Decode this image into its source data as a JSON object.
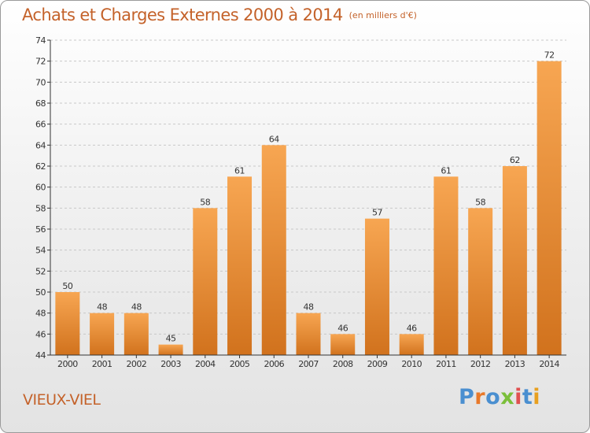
{
  "chart_title": "Achats et Charges Externes 2000 à 2014",
  "chart_subtitle": "(en milliers d'€)",
  "commune_name": "VIEUX-VIEL",
  "logo": {
    "text": "Proxiti",
    "colors": [
      "#4a8fd0",
      "#e8792a",
      "#4a8fd0",
      "#7bbf3a",
      "#e05050",
      "#4a8fd0",
      "#e8a020"
    ]
  },
  "colors": {
    "accent": "#c4622a",
    "bar_top": "#f7a652",
    "bar_bottom": "#d1721d",
    "axis": "#333333"
  },
  "chart_data": {
    "type": "bar",
    "categories": [
      "2000",
      "2001",
      "2002",
      "2003",
      "2004",
      "2005",
      "2006",
      "2007",
      "2008",
      "2009",
      "2010",
      "2011",
      "2012",
      "2013",
      "2014"
    ],
    "values": [
      50,
      48,
      48,
      45,
      58,
      61,
      64,
      48,
      46,
      57,
      46,
      61,
      58,
      62,
      72
    ],
    "ylim": [
      44,
      74
    ],
    "yticks": [
      44,
      46,
      48,
      50,
      52,
      54,
      56,
      58,
      60,
      62,
      64,
      66,
      68,
      70,
      72,
      74
    ],
    "grid": true,
    "data_labels": true
  }
}
